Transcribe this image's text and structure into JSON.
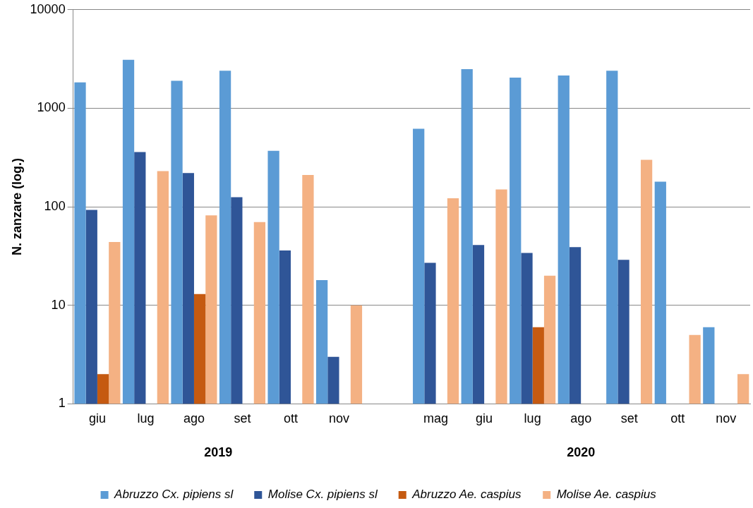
{
  "chart_data": {
    "type": "bar",
    "ylabel": "N. zanzare (log.)",
    "categories": [
      "giu",
      "lug",
      "ago",
      "set",
      "ott",
      "nov",
      null,
      "mag",
      "giu",
      "lug",
      "ago",
      "set",
      "ott",
      "nov"
    ],
    "series": [
      {
        "name": "Abruzzo Cx. pipiens sl",
        "color": "#5b9bd5",
        "values": [
          1830,
          3100,
          1900,
          2400,
          370,
          18,
          null,
          620,
          2500,
          2050,
          2150,
          2400,
          180,
          6
        ]
      },
      {
        "name": "Molise Cx. pipiens sl",
        "color": "#2f5597",
        "values": [
          93,
          360,
          220,
          125,
          36,
          3,
          null,
          27,
          41,
          34,
          39,
          29,
          null,
          null
        ]
      },
      {
        "name": "Abruzzo Ae. caspius",
        "color": "#c55a11",
        "values": [
          2,
          null,
          13,
          null,
          null,
          null,
          null,
          null,
          null,
          6,
          null,
          null,
          null,
          null
        ]
      },
      {
        "name": "Molise Ae. caspius",
        "color": "#f4b183",
        "values": [
          44,
          230,
          82,
          70,
          210,
          10,
          null,
          122,
          150,
          20,
          null,
          300,
          5,
          2
        ]
      }
    ],
    "log": "y",
    "ylim": [
      1,
      10000
    ],
    "yticks": [
      1,
      10,
      100,
      1000,
      10000
    ],
    "grid": "y",
    "legend": "bottom",
    "annotations": [
      "2019",
      "2020"
    ]
  }
}
